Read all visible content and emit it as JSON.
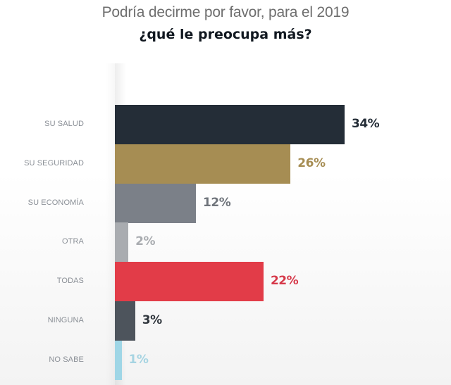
{
  "header": {
    "title_line1": "Podría decirme por favor, para el 2019",
    "title_line2": "¿qué le preocupa más?"
  },
  "chart_data": {
    "type": "bar",
    "orientation": "horizontal",
    "title": "Podría decirme por favor, para el 2019 ¿qué le preocupa más?",
    "xlabel": "",
    "ylabel": "",
    "unit": "%",
    "xlim": [
      0,
      34
    ],
    "grid": false,
    "legend": "none",
    "categories": [
      "SU SALUD",
      "SU SEGURIDAD",
      "SU ECONOMÍA",
      "OTRA",
      "TODAS",
      "NINGUNA",
      "NO SABE"
    ],
    "values": [
      34,
      26,
      12,
      2,
      22,
      3,
      1
    ],
    "data_labels": [
      "34%",
      "26%",
      "12%",
      "2%",
      "22%",
      "3%",
      "1%"
    ],
    "colors": [
      "#242d37",
      "#a68d53",
      "#7b8088",
      "#a9acb0",
      "#e23c48",
      "#4d545c",
      "#9fd6e6"
    ],
    "label_colors": [
      "#242d37",
      "#a68d53",
      "#6f747b",
      "#a9acb0",
      "#d6394a",
      "#2f353c",
      "#a6d4e2"
    ]
  }
}
